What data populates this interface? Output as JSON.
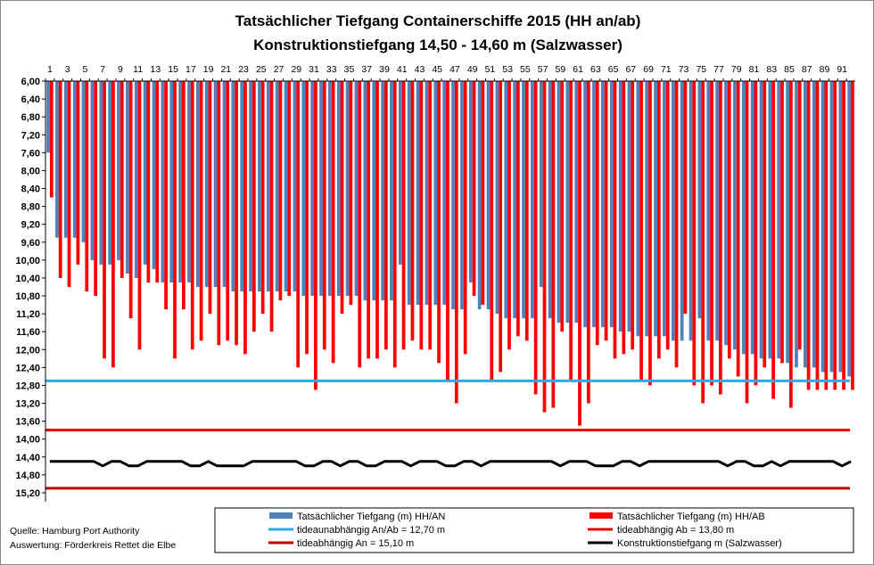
{
  "chart_data": {
    "type": "bar",
    "title": "Tatsächlicher Tiefgang Containerschiffe 2015 (HH an/ab)",
    "subtitle": "Konstruktionstiefgang   14,50 - 14,60 m (Salzwasser)",
    "x_tick_labels": [
      "1",
      "3",
      "5",
      "7",
      "9",
      "11",
      "13",
      "15",
      "17",
      "19",
      "21",
      "23",
      "25",
      "27",
      "29",
      "31",
      "33",
      "35",
      "37",
      "39",
      "41",
      "43",
      "45",
      "47",
      "49",
      "51",
      "53",
      "55",
      "57",
      "59",
      "61",
      "63",
      "65",
      "67",
      "69",
      "71",
      "73",
      "75",
      "77",
      "79",
      "81",
      "83",
      "85",
      "87",
      "89",
      "91"
    ],
    "categories": [
      1,
      2,
      3,
      4,
      5,
      6,
      7,
      8,
      9,
      10,
      11,
      12,
      13,
      14,
      15,
      16,
      17,
      18,
      19,
      20,
      21,
      22,
      23,
      24,
      25,
      26,
      27,
      28,
      29,
      30,
      31,
      32,
      33,
      34,
      35,
      36,
      37,
      38,
      39,
      40,
      41,
      42,
      43,
      44,
      45,
      46,
      47,
      48,
      49,
      50,
      51,
      52,
      53,
      54,
      55,
      56,
      57,
      58,
      59,
      60,
      61,
      62,
      63,
      64,
      65,
      66,
      67,
      68,
      69,
      70,
      71,
      72,
      73,
      74,
      75,
      76,
      77,
      78,
      79,
      80,
      81,
      82,
      83,
      84,
      85,
      86,
      87,
      88,
      89,
      90,
      91,
      92
    ],
    "y_tick_labels": [
      "6,00",
      "6,40",
      "6,80",
      "7,20",
      "7,60",
      "8,00",
      "8,40",
      "8,80",
      "9,20",
      "9,60",
      "10,00",
      "10,40",
      "10,80",
      "11,20",
      "11,60",
      "12,00",
      "12,40",
      "12,80",
      "13,20",
      "13,60",
      "14,00",
      "14,40",
      "14,80",
      "15,20"
    ],
    "ylim": [
      6.0,
      15.4
    ],
    "y_inverted": true,
    "series": [
      {
        "name": "Tatsächlicher Tiefgang (m) HH/AN",
        "color": "#4f81bd",
        "values": [
          7.6,
          9.5,
          9.5,
          9.5,
          9.6,
          10.0,
          10.1,
          10.1,
          10.0,
          10.3,
          10.4,
          10.1,
          10.2,
          10.5,
          10.5,
          10.5,
          10.5,
          10.6,
          10.6,
          10.6,
          10.6,
          10.7,
          10.7,
          10.7,
          10.7,
          10.7,
          10.7,
          10.7,
          10.7,
          10.8,
          10.8,
          10.8,
          10.8,
          10.8,
          10.8,
          10.8,
          10.9,
          10.9,
          10.9,
          10.9,
          10.1,
          11.0,
          11.0,
          11.0,
          11.0,
          11.0,
          11.1,
          11.1,
          10.5,
          11.1,
          11.1,
          11.2,
          11.3,
          11.3,
          11.3,
          11.3,
          10.6,
          11.3,
          11.4,
          11.4,
          11.4,
          11.5,
          11.5,
          11.5,
          11.5,
          11.6,
          11.6,
          11.7,
          11.7,
          11.7,
          11.7,
          11.8,
          11.8,
          11.8,
          11.3,
          11.8,
          11.8,
          11.9,
          12.0,
          12.1,
          12.1,
          12.2,
          12.2,
          12.2,
          12.3,
          12.4,
          12.4,
          12.4,
          12.5,
          12.5,
          12.5,
          12.6
        ]
      },
      {
        "name": "Tatsächlicher Tiefgang (m) HH/AB",
        "color": "#ff0000",
        "values": [
          8.6,
          10.4,
          10.6,
          10.1,
          10.7,
          10.8,
          12.2,
          12.4,
          10.4,
          11.3,
          12.0,
          10.5,
          10.5,
          11.1,
          12.2,
          11.1,
          12.0,
          11.8,
          11.2,
          11.9,
          11.8,
          11.9,
          12.1,
          11.6,
          11.2,
          11.6,
          10.9,
          10.8,
          12.4,
          12.1,
          12.9,
          12.0,
          12.3,
          11.2,
          11.0,
          12.4,
          12.2,
          12.2,
          12.0,
          12.4,
          12.0,
          11.8,
          12.0,
          12.0,
          12.3,
          12.7,
          13.2,
          12.1,
          10.8,
          11.0,
          12.7,
          12.5,
          12.0,
          11.7,
          11.8,
          13.0,
          13.4,
          13.3,
          11.6,
          12.7,
          13.7,
          13.2,
          11.9,
          11.8,
          12.2,
          12.1,
          12.0,
          12.7,
          12.8,
          12.2,
          12.0,
          12.4,
          11.2,
          12.8,
          13.2,
          12.8,
          13.0,
          12.2,
          12.6,
          13.2,
          12.8,
          12.4,
          13.1,
          12.3,
          13.3,
          12.0,
          12.9,
          12.9,
          12.9,
          12.9,
          12.9,
          12.9
        ]
      }
    ],
    "reference_lines": [
      {
        "name": "tideaunabhängig An/Ab = 12,70 m",
        "value": 12.7,
        "color": "#2eaae6"
      },
      {
        "name": "tideabhängig Ab = 13,80 m",
        "value": 13.8,
        "color": "#e00000"
      },
      {
        "name": "tideabhängig An = 15,10 m",
        "value": 15.1,
        "color": "#c00000"
      },
      {
        "name": "Konstruktionstiefgang  m (Salzwasser)",
        "color": "#000000",
        "values": [
          14.5,
          14.5,
          14.5,
          14.5,
          14.5,
          14.5,
          14.6,
          14.5,
          14.5,
          14.6,
          14.6,
          14.5,
          14.5,
          14.5,
          14.5,
          14.5,
          14.6,
          14.6,
          14.5,
          14.6,
          14.6,
          14.6,
          14.6,
          14.5,
          14.5,
          14.5,
          14.5,
          14.5,
          14.5,
          14.6,
          14.6,
          14.5,
          14.5,
          14.6,
          14.5,
          14.5,
          14.6,
          14.6,
          14.5,
          14.5,
          14.5,
          14.6,
          14.5,
          14.5,
          14.5,
          14.6,
          14.6,
          14.5,
          14.5,
          14.6,
          14.5,
          14.5,
          14.5,
          14.5,
          14.5,
          14.5,
          14.5,
          14.5,
          14.6,
          14.5,
          14.5,
          14.5,
          14.6,
          14.6,
          14.6,
          14.5,
          14.5,
          14.6,
          14.5,
          14.5,
          14.5,
          14.5,
          14.5,
          14.5,
          14.5,
          14.5,
          14.5,
          14.6,
          14.5,
          14.5,
          14.6,
          14.6,
          14.5,
          14.6,
          14.5,
          14.5,
          14.5,
          14.5,
          14.5,
          14.5,
          14.6,
          14.5
        ]
      }
    ],
    "legend_placement": "bottom-right",
    "grid": false
  },
  "footer": {
    "source": "Quelle: Hamburg Port Authority",
    "evaluation": "Auswertung: Förderkreis Rettet die Elbe"
  }
}
